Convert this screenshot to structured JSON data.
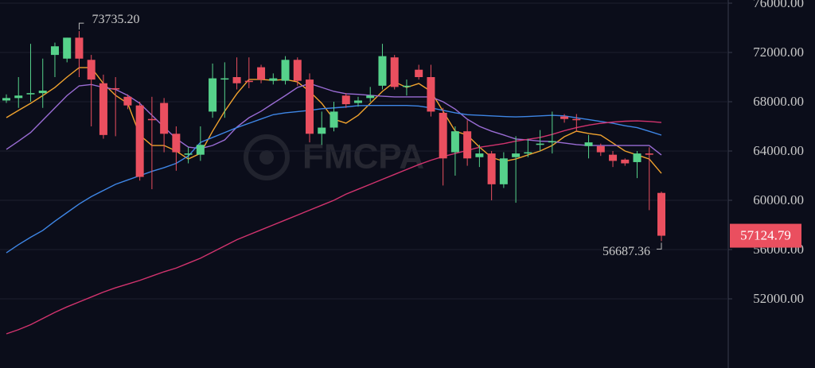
{
  "chart_data": {
    "type": "candlestick",
    "watermark": "FMCPA",
    "up_color": "#56d28b",
    "down_color": "#ea4f5f",
    "ylim": [
      46387,
      76258
    ],
    "yticks": [
      {
        "value": 76000,
        "label": "76000.00"
      },
      {
        "value": 72000,
        "label": "72000.00"
      },
      {
        "value": 68000,
        "label": "68000.00"
      },
      {
        "value": 64000,
        "label": "64000.00"
      },
      {
        "value": 60000,
        "label": "60000.00"
      },
      {
        "value": 56000,
        "label": "56000.00"
      },
      {
        "value": 52000,
        "label": "52000.00"
      }
    ],
    "grid": true,
    "open": [
      68100,
      68300,
      68600,
      68700,
      71800,
      71500,
      73200,
      71400,
      69500,
      69100,
      68400,
      67700,
      66600,
      67900,
      65400,
      63700,
      63700,
      67200,
      69800,
      70000,
      69700,
      70800,
      69700,
      69700,
      71400,
      69800,
      65400,
      65900,
      68500,
      67900,
      68300,
      69300,
      71600,
      69200,
      70600,
      70000,
      67100,
      63900,
      65600,
      63500,
      63800,
      61300,
      63500,
      63800,
      64500,
      64700,
      66800,
      66600,
      64400,
      64400,
      63700,
      63300,
      63100,
      63800,
      60600
    ],
    "high": [
      68600,
      70000,
      72700,
      71500,
      72800,
      73200,
      73735.2,
      71800,
      70200,
      70000,
      68600,
      68000,
      68400,
      68300,
      66000,
      64300,
      66000,
      71100,
      71200,
      71600,
      71600,
      71000,
      70300,
      71700,
      71600,
      70300,
      67200,
      68000,
      68700,
      68400,
      69200,
      72700,
      71800,
      69800,
      71000,
      71000,
      67500,
      66000,
      66500,
      64500,
      64000,
      63900,
      65200,
      65000,
      65700,
      67200,
      67000,
      67000,
      65300,
      64600,
      64000,
      63400,
      64000,
      64300,
      60700
    ],
    "low": [
      67900,
      67500,
      68000,
      67500,
      70000,
      71200,
      70000,
      66000,
      65000,
      65200,
      67400,
      61600,
      60900,
      63900,
      62400,
      63000,
      63200,
      66700,
      66700,
      69000,
      69100,
      69500,
      69400,
      69400,
      69300,
      64700,
      64500,
      65600,
      67500,
      67600,
      68000,
      69000,
      69000,
      68500,
      69800,
      66800,
      61200,
      62000,
      62800,
      62700,
      60000,
      61000,
      59800,
      63500,
      64000,
      63800,
      66300,
      65600,
      63400,
      63600,
      62700,
      62800,
      61800,
      59200,
      56687.36
    ],
    "close": [
      68300,
      68500,
      68700,
      68900,
      72500,
      73200,
      71500,
      69800,
      65300,
      69000,
      67700,
      61900,
      66500,
      65400,
      63900,
      63800,
      64500,
      69900,
      69900,
      69500,
      69600,
      69800,
      69900,
      71400,
      69700,
      65400,
      65900,
      67200,
      67800,
      68100,
      68500,
      71700,
      69200,
      69300,
      70000,
      67200,
      63400,
      65600,
      63400,
      63800,
      61300,
      63400,
      63800,
      63900,
      64600,
      64800,
      66600,
      66500,
      64700,
      63900,
      63200,
      63000,
      63800,
      63700,
      57124.79
    ],
    "series": [
      {
        "color": "#f0a22e",
        "values": [
          66710,
          67300,
          67870,
          68500,
          69160,
          70000,
          70770,
          70770,
          69480,
          68520,
          67870,
          65290,
          64450,
          64450,
          64000,
          63350,
          63810,
          65610,
          67230,
          68650,
          69810,
          69810,
          69740,
          69810,
          69610,
          68840,
          67870,
          66580,
          66260,
          66900,
          67870,
          68840,
          69610,
          69160,
          69480,
          68840,
          67230,
          65610,
          65290,
          64320,
          63480,
          63160,
          63350,
          63680,
          64000,
          64450,
          65160,
          65610,
          65420,
          65290,
          64650,
          64000,
          63680,
          63350,
          62190
        ]
      },
      {
        "color": "#9a6cd4",
        "values": [
          64130,
          64800,
          65500,
          66500,
          67500,
          68500,
          69290,
          69400,
          69160,
          69000,
          68520,
          67870,
          66900,
          65940,
          65000,
          64320,
          64200,
          64450,
          64900,
          65940,
          66700,
          67230,
          67870,
          68500,
          69160,
          69480,
          69160,
          68840,
          68650,
          68600,
          68520,
          68450,
          68390,
          68390,
          68390,
          68390,
          68000,
          67400,
          66580,
          66000,
          65610,
          65300,
          64970,
          64900,
          64800,
          64770,
          64650,
          64520,
          64450,
          64450,
          64450,
          64450,
          64450,
          64450,
          63680
        ]
      },
      {
        "color": "#3e86e6",
        "values": [
          55740,
          56400,
          57000,
          57550,
          58300,
          59000,
          59700,
          60300,
          60800,
          61300,
          61650,
          62000,
          62350,
          62650,
          63000,
          63600,
          64700,
          65100,
          65500,
          65900,
          66250,
          66600,
          66950,
          67100,
          67200,
          67300,
          67430,
          67500,
          67580,
          67680,
          67700,
          67700,
          67700,
          67700,
          67650,
          67500,
          67300,
          67100,
          66950,
          66900,
          66850,
          66800,
          66770,
          66800,
          66850,
          66900,
          66850,
          66700,
          66550,
          66400,
          66250,
          66050,
          65900,
          65600,
          65290
        ]
      },
      {
        "color": "#d2336e",
        "values": [
          49160,
          49500,
          49900,
          50400,
          50900,
          51350,
          51750,
          52150,
          52550,
          52900,
          53200,
          53500,
          53850,
          54200,
          54500,
          54900,
          55300,
          55800,
          56300,
          56800,
          57200,
          57600,
          58000,
          58400,
          58800,
          59200,
          59600,
          60000,
          60500,
          60900,
          61300,
          61700,
          62100,
          62500,
          62900,
          63250,
          63550,
          63800,
          64050,
          64300,
          64450,
          64600,
          64800,
          64950,
          65100,
          65350,
          65650,
          65900,
          66100,
          66250,
          66350,
          66420,
          66450,
          66400,
          66320
        ]
      }
    ],
    "max_label": "73735.20",
    "min_label": "56687.36",
    "last_label": "57124.79"
  }
}
